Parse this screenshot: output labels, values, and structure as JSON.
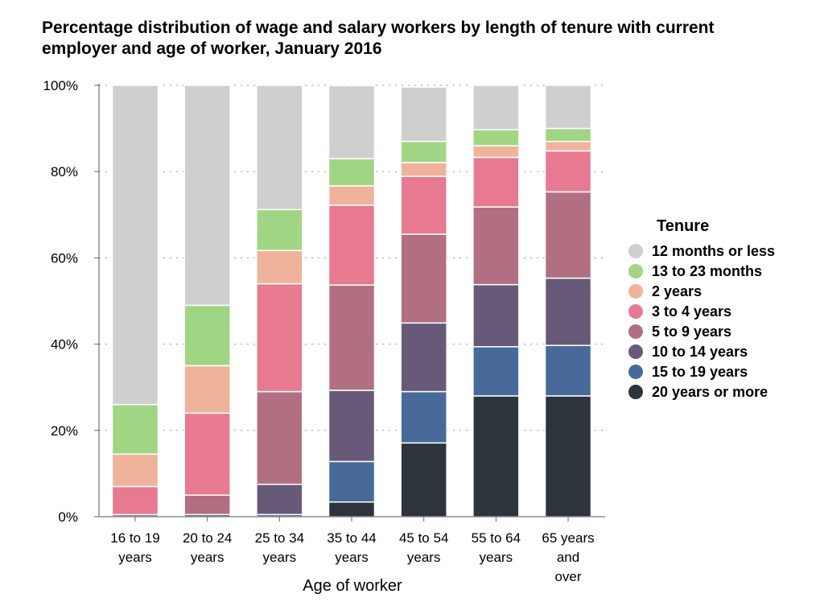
{
  "chart_data": {
    "type": "bar",
    "stacked": true,
    "title": "Percentage distribution of wage and salary workers by length of tenure with current employer and age of worker, January 2016",
    "xlabel": "Age of worker",
    "ylabel": "",
    "ylim": [
      0,
      100
    ],
    "y_ticks": [
      "0%",
      "20%",
      "40%",
      "60%",
      "80%",
      "100%"
    ],
    "grid": "dotted horizontal",
    "legend_title": "Tenure",
    "legend_position": "right",
    "categories": [
      [
        "16 to 19",
        "years"
      ],
      [
        "20 to 24",
        "years"
      ],
      [
        "25 to 34",
        "years"
      ],
      [
        "35 to 44",
        "years"
      ],
      [
        "45 to 54",
        "years"
      ],
      [
        "55 to 64",
        "years"
      ],
      [
        "65 years",
        "and",
        "over"
      ]
    ],
    "series": [
      {
        "name": "20 years or more",
        "color": "#2d343c",
        "values": [
          0,
          0,
          0,
          3.4,
          17.1,
          28.0,
          28.0
        ]
      },
      {
        "name": "15 to 19 years",
        "color": "#486a9b",
        "values": [
          0,
          0,
          0.5,
          9.4,
          11.9,
          11.4,
          11.7
        ]
      },
      {
        "name": "10 to 14 years",
        "color": "#675a78",
        "values": [
          0,
          0.5,
          7.0,
          16.5,
          15.9,
          14.4,
          15.6
        ]
      },
      {
        "name": "5 to 9 years",
        "color": "#b17081",
        "values": [
          0.5,
          4.5,
          21.5,
          24.4,
          20.6,
          18.0,
          20.0
        ]
      },
      {
        "name": "3 to 4 years",
        "color": "#e77991",
        "values": [
          6.5,
          19.0,
          25.0,
          18.5,
          13.4,
          11.5,
          9.5
        ]
      },
      {
        "name": "2 years",
        "color": "#efb39b",
        "values": [
          7.5,
          11.0,
          7.7,
          4.5,
          3.2,
          2.7,
          2.2
        ]
      },
      {
        "name": "13 to 23 months",
        "color": "#a0d683",
        "values": [
          11.5,
          14.0,
          9.5,
          6.3,
          4.9,
          3.7,
          3.0
        ]
      },
      {
        "name": "12 months or less",
        "color": "#cfcfcf",
        "values": [
          74.0,
          51.0,
          28.8,
          16.9,
          12.6,
          10.3,
          10.0
        ]
      }
    ]
  }
}
